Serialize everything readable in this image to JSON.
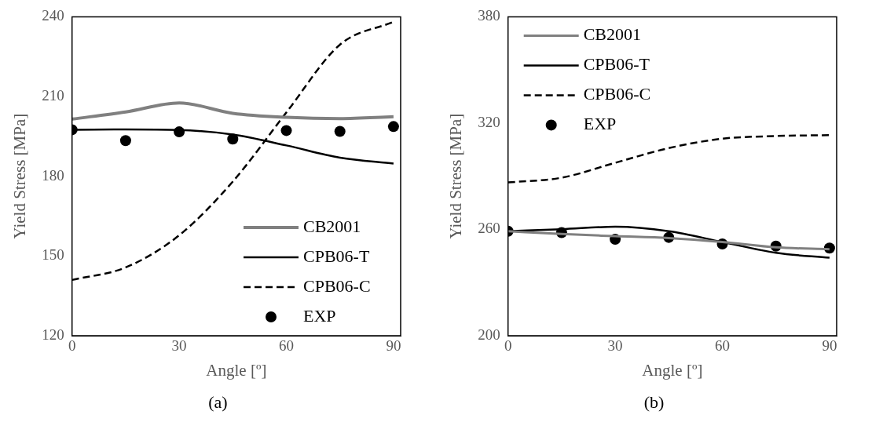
{
  "chart_data": [
    {
      "type": "line",
      "xlabel": "Angle [º]",
      "ylabel": "Yield Stress [MPa]",
      "annotations": [
        "(a)"
      ],
      "xlim": [
        0,
        92
      ],
      "xticks": [
        0,
        30,
        60,
        90
      ],
      "ylim": [
        120,
        240
      ],
      "yticks": [
        120,
        150,
        180,
        210,
        240
      ],
      "grid": false,
      "legend": "bottom right",
      "x": [
        0,
        15,
        30,
        45,
        60,
        75,
        90
      ],
      "series": [
        {
          "name": "CB2001",
          "color": "#808080",
          "line_style": "solid",
          "marker": "none",
          "values": [
            201.5,
            204.2,
            207.6,
            203.7,
            202.2,
            201.7,
            202.4
          ]
        },
        {
          "name": "CPB06-T",
          "color": "#000000",
          "line_style": "solid",
          "marker": "none",
          "values": [
            197.5,
            197.6,
            197.4,
            195.7,
            191.6,
            187.0,
            184.8
          ]
        },
        {
          "name": "CPB06-C",
          "color": "#000000",
          "line_style": "dashed",
          "marker": "none",
          "values": [
            141.0,
            145.7,
            157.8,
            178.0,
            204.0,
            229.5,
            238.1
          ]
        },
        {
          "name": "EXP",
          "type": "scatter",
          "color": "#000000",
          "marker": "circle",
          "values": [
            197.5,
            193.4,
            196.7,
            194.0,
            197.2,
            196.9,
            198.7
          ]
        }
      ]
    },
    {
      "type": "line",
      "xlabel": "Angle [º]",
      "ylabel": "Yield Stress [MPa]",
      "annotations": [
        "(b)"
      ],
      "xlim": [
        0,
        92
      ],
      "xticks": [
        0,
        30,
        60,
        90
      ],
      "ylim": [
        200,
        380
      ],
      "yticks": [
        200,
        260,
        320,
        380
      ],
      "grid": false,
      "legend": "top left",
      "x": [
        0,
        15,
        30,
        45,
        60,
        75,
        90
      ],
      "series": [
        {
          "name": "CB2001",
          "color": "#808080",
          "line_style": "solid",
          "marker": "none",
          "values": [
            259.0,
            257.4,
            256.2,
            255.1,
            252.9,
            249.9,
            248.8
          ]
        },
        {
          "name": "CPB06-T",
          "color": "#000000",
          "line_style": "solid",
          "marker": "none",
          "values": [
            259.0,
            260.1,
            261.5,
            259.0,
            252.9,
            246.8,
            244.0
          ]
        },
        {
          "name": "CPB06-C",
          "color": "#000000",
          "line_style": "dashed",
          "marker": "none",
          "values": [
            286.5,
            289.2,
            297.6,
            305.9,
            311.2,
            312.7,
            313.2
          ]
        },
        {
          "name": "EXP",
          "type": "scatter",
          "color": "#000000",
          "marker": "circle",
          "values": [
            259.0,
            258.2,
            254.4,
            255.5,
            251.8,
            250.6,
            249.5
          ]
        }
      ]
    }
  ]
}
